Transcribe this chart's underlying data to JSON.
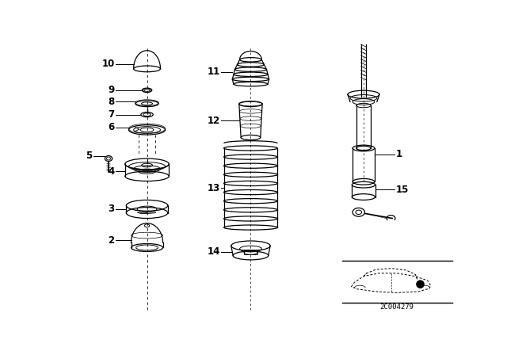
{
  "bg_color": "#ffffff",
  "line_color": "#000000",
  "diagram_code": "2C004279",
  "font_size_label": 8.5,
  "font_size_code": 6.5
}
